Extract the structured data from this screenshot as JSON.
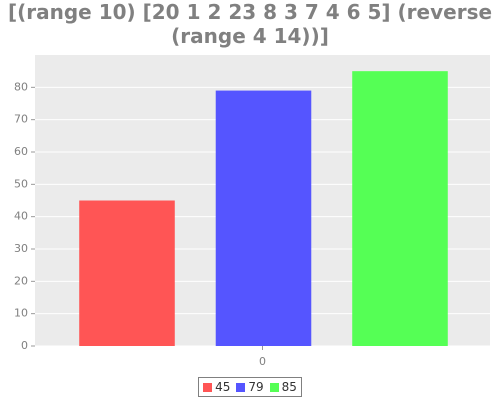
{
  "chart_data": {
    "type": "bar",
    "title": "[(range 10) [20 1 2 23 8 3 7 4 6 5] (reverse\n(range 4 14))]",
    "categories": [
      "0"
    ],
    "series": [
      {
        "name": "45",
        "color": "#ff5555",
        "values": [
          45
        ]
      },
      {
        "name": "79",
        "color": "#5555ff",
        "values": [
          79
        ]
      },
      {
        "name": "85",
        "color": "#55ff55",
        "values": [
          85
        ]
      }
    ],
    "ylim": [
      0,
      90
    ],
    "yticks": [
      0,
      10,
      20,
      30,
      40,
      50,
      60,
      70,
      80
    ],
    "grid": true,
    "legend": "bottom"
  }
}
